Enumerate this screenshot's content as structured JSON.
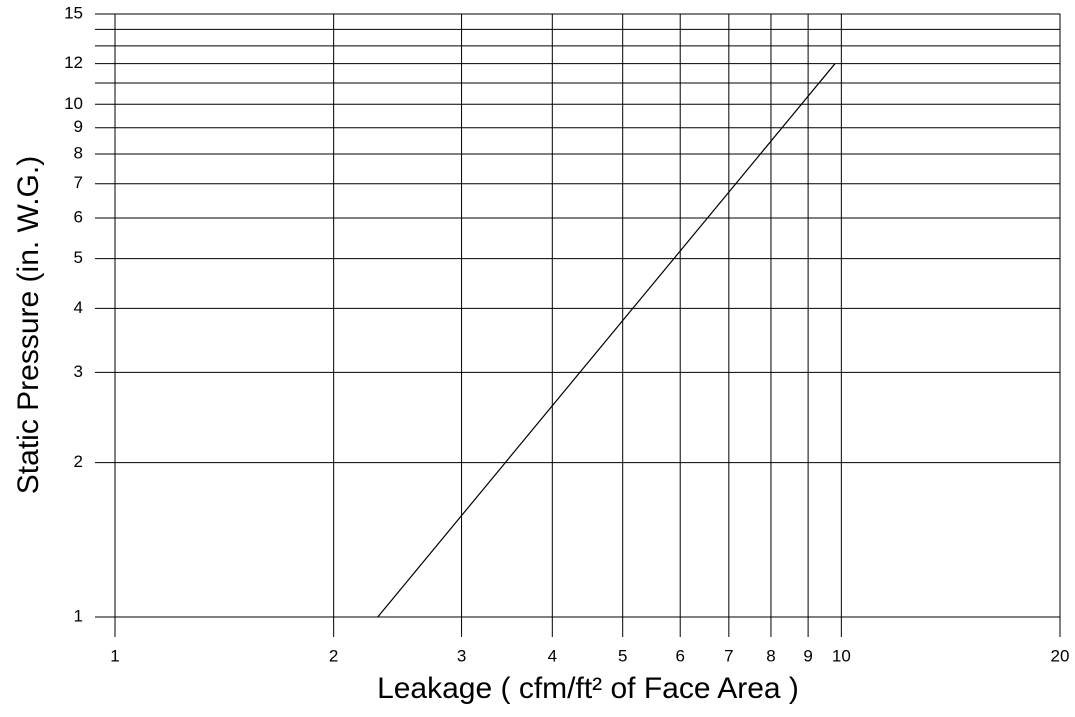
{
  "chart_data": {
    "type": "line",
    "x_label": "Leakage ( cfm/ft² of Face Area )",
    "y_label": "Static Pressure (in. W.G.)",
    "xscale": "log",
    "yscale": "log",
    "grid": true,
    "xlim": [
      1,
      20
    ],
    "ylim": [
      1,
      15
    ],
    "xticks": [
      1,
      2,
      3,
      4,
      5,
      6,
      7,
      8,
      9,
      10,
      20
    ],
    "yticks": [
      1,
      2,
      3,
      4,
      5,
      6,
      7,
      8,
      9,
      10,
      12,
      15
    ],
    "minor_yticks": [
      11,
      13,
      14
    ],
    "series": [
      {
        "color": "#000000",
        "x": [
          2.3,
          9.8
        ],
        "values": [
          1,
          12
        ]
      }
    ]
  }
}
